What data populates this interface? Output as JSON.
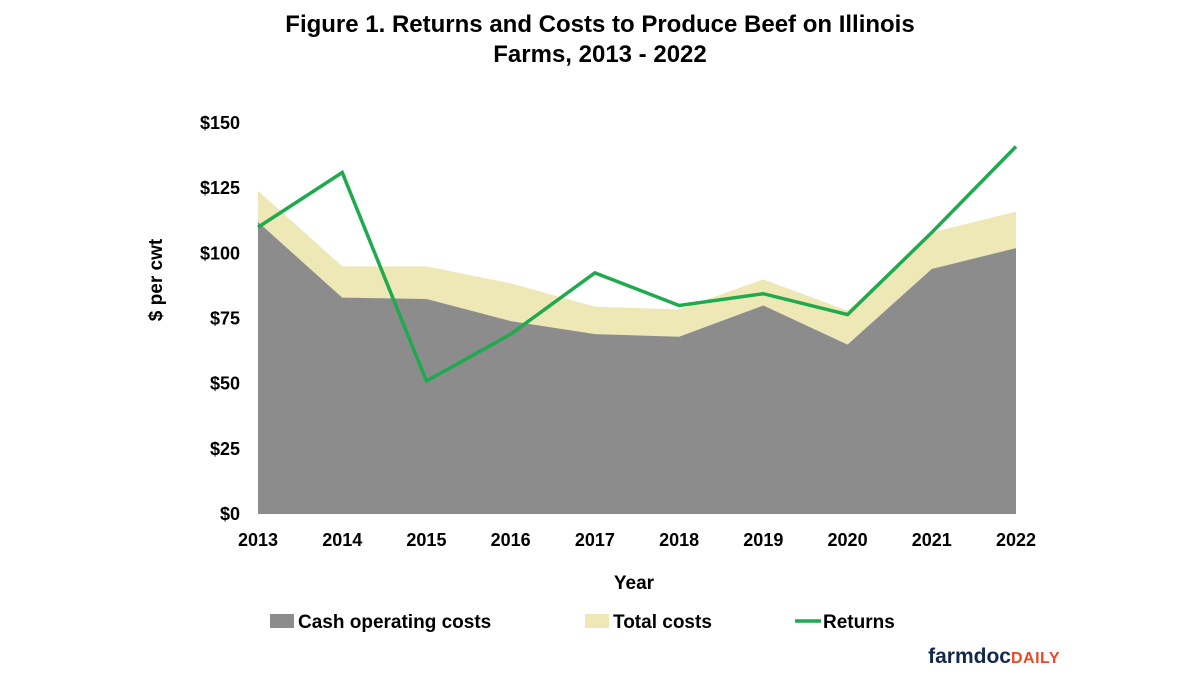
{
  "chart_data": {
    "type": "area",
    "title_line1": "Figure 1. Returns and Costs to Produce Beef on Illinois",
    "title_line2": "Farms, 2013 - 2022",
    "xlabel": "Year",
    "ylabel": "$ per cwt",
    "categories": [
      "2013",
      "2014",
      "2015",
      "2016",
      "2017",
      "2018",
      "2019",
      "2020",
      "2021",
      "2022"
    ],
    "ylim": [
      0,
      150
    ],
    "yticks": [
      0,
      25,
      50,
      75,
      100,
      125,
      150
    ],
    "ytick_labels": [
      "$0",
      "$25",
      "$50",
      "$75",
      "$100",
      "$125",
      "$150"
    ],
    "grid": false,
    "legend_position": "bottom",
    "series": [
      {
        "name": "Cash operating costs",
        "kind": "area",
        "color": "#8c8c8c",
        "values": [
          112,
          83,
          82.5,
          74,
          69,
          68,
          80,
          65,
          94,
          102
        ]
      },
      {
        "name": "Total costs",
        "kind": "area",
        "color": "#ede8b6",
        "values": [
          124,
          95,
          95,
          88.5,
          79.5,
          78.5,
          90,
          78,
          108,
          116
        ]
      },
      {
        "name": "Returns",
        "kind": "line",
        "color": "#1faa4f",
        "values": [
          110,
          131,
          51,
          69,
          92.5,
          80,
          84.5,
          76.5,
          108,
          141
        ]
      }
    ]
  },
  "logo": {
    "part1": "farmdoc",
    "part2": "DAILY"
  }
}
